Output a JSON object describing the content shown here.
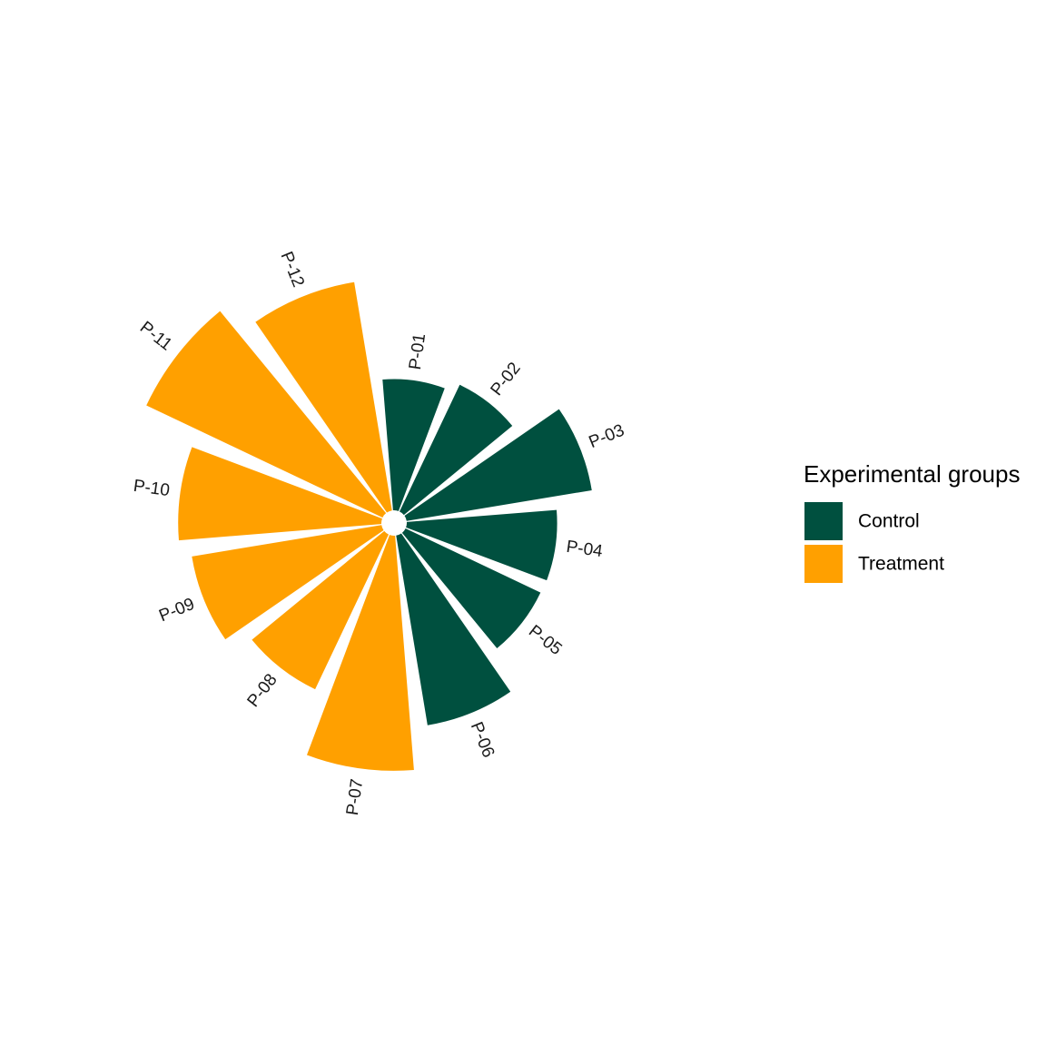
{
  "chart_data": {
    "type": "polar-bar",
    "categories": [
      "P-01",
      "P-02",
      "P-03",
      "P-04",
      "P-05",
      "P-06",
      "P-07",
      "P-08",
      "P-09",
      "P-10",
      "P-11",
      "P-12"
    ],
    "series": [
      {
        "name": "Control",
        "color": "#00503F",
        "values": [
          144,
          154,
          206,
          165,
          164,
          211,
          null,
          null,
          null,
          null,
          null,
          null
        ]
      },
      {
        "name": "Treatment",
        "color": "#FFA000",
        "values": [
          null,
          null,
          null,
          null,
          null,
          null,
          258,
          188,
          211,
          223,
          287,
          254
        ]
      }
    ],
    "legend_title": "Experimental groups",
    "legend": "right"
  }
}
